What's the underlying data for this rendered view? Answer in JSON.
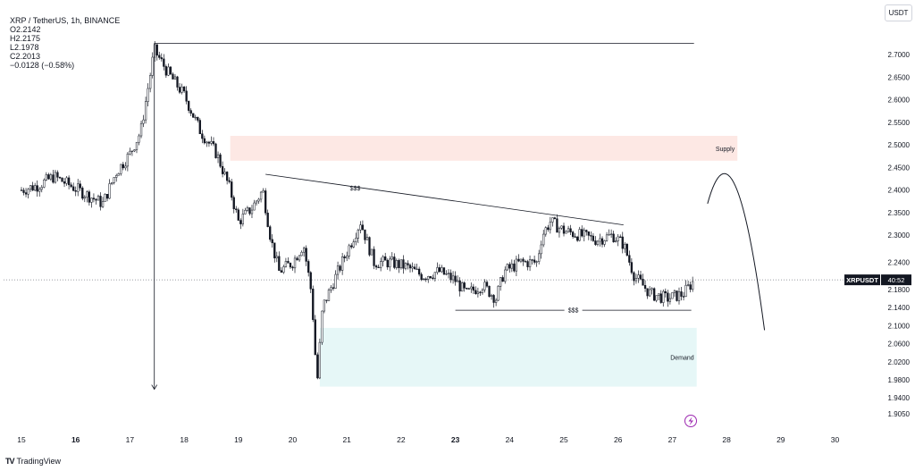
{
  "header": {
    "symbol": "XRP / TetherUS, 1h, BINANCE",
    "open": "O2.2142",
    "high": "H2.2175",
    "low": "L2.1978",
    "close": "C2.2013",
    "change": "−0.0128 (−0.58%)"
  },
  "currency_button": "USDT",
  "footer": {
    "logo": "TV",
    "brand": "TradingView"
  },
  "chart_data": {
    "type": "candlestick",
    "symbol": "XRPUSDT",
    "interval": "1h",
    "y_ticks": [
      "2.7000",
      "2.6500",
      "2.6000",
      "2.5500",
      "2.5000",
      "2.4500",
      "2.4000",
      "2.3500",
      "2.3000",
      "2.2400",
      "2.1800",
      "2.1400",
      "2.1000",
      "2.0600",
      "2.0200",
      "1.9800",
      "1.9400",
      "1.9050"
    ],
    "x_ticks": [
      {
        "label": "15",
        "bold": false
      },
      {
        "label": "16",
        "bold": true
      },
      {
        "label": "17",
        "bold": false
      },
      {
        "label": "18",
        "bold": false
      },
      {
        "label": "19",
        "bold": false
      },
      {
        "label": "20",
        "bold": false
      },
      {
        "label": "21",
        "bold": false
      },
      {
        "label": "22",
        "bold": false
      },
      {
        "label": "23",
        "bold": true
      },
      {
        "label": "24",
        "bold": false
      },
      {
        "label": "25",
        "bold": false
      },
      {
        "label": "26",
        "bold": false
      },
      {
        "label": "27",
        "bold": false
      },
      {
        "label": "28",
        "bold": false
      },
      {
        "label": "29",
        "bold": false
      },
      {
        "label": "30",
        "bold": false
      }
    ],
    "current_price_label": "XRPUSDT",
    "countdown": "40:52",
    "current_price": 2.2013,
    "price_path": [
      [
        15.0,
        2.4
      ],
      [
        15.3,
        2.41
      ],
      [
        15.6,
        2.43
      ],
      [
        15.9,
        2.41
      ],
      [
        16.2,
        2.39
      ],
      [
        16.5,
        2.37
      ],
      [
        16.75,
        2.44
      ],
      [
        17.0,
        2.48
      ],
      [
        17.2,
        2.53
      ],
      [
        17.45,
        2.71
      ],
      [
        17.7,
        2.66
      ],
      [
        18.0,
        2.61
      ],
      [
        18.3,
        2.53
      ],
      [
        18.6,
        2.48
      ],
      [
        18.85,
        2.4
      ],
      [
        19.0,
        2.33
      ],
      [
        19.25,
        2.36
      ],
      [
        19.45,
        2.4
      ],
      [
        19.6,
        2.29
      ],
      [
        19.75,
        2.22
      ],
      [
        20.0,
        2.24
      ],
      [
        20.2,
        2.28
      ],
      [
        20.35,
        2.17
      ],
      [
        20.45,
        1.97
      ],
      [
        20.55,
        2.14
      ],
      [
        20.8,
        2.21
      ],
      [
        21.1,
        2.29
      ],
      [
        21.25,
        2.33
      ],
      [
        21.5,
        2.24
      ],
      [
        21.8,
        2.24
      ],
      [
        22.1,
        2.23
      ],
      [
        22.4,
        2.21
      ],
      [
        22.7,
        2.22
      ],
      [
        23.0,
        2.2
      ],
      [
        23.2,
        2.17
      ],
      [
        23.5,
        2.19
      ],
      [
        23.75,
        2.16
      ],
      [
        23.9,
        2.22
      ],
      [
        24.2,
        2.24
      ],
      [
        24.5,
        2.24
      ],
      [
        24.6,
        2.3
      ],
      [
        24.75,
        2.33
      ],
      [
        25.0,
        2.31
      ],
      [
        25.3,
        2.3
      ],
      [
        25.6,
        2.29
      ],
      [
        25.9,
        2.3
      ],
      [
        26.1,
        2.28
      ],
      [
        26.3,
        2.21
      ],
      [
        26.6,
        2.17
      ],
      [
        26.9,
        2.16
      ],
      [
        27.2,
        2.17
      ],
      [
        27.4,
        2.2
      ]
    ],
    "levels": [
      {
        "name": "swing-high",
        "price": 2.725,
        "x_start": 17.45,
        "x_end": 27.4
      },
      {
        "name": "sell-side-liquidity",
        "label": "$$$",
        "price": 2.134,
        "x_start": 23.0,
        "x_end": 27.35
      }
    ],
    "trendlines": [
      {
        "name": "buy-side-liquidity",
        "label": "$$$",
        "x1": 19.5,
        "y1": 2.435,
        "x2": 26.1,
        "y2": 2.323
      }
    ],
    "zones": [
      {
        "name": "supply-zone",
        "label": "Supply",
        "top": 2.52,
        "bottom": 2.465,
        "x_start": 18.85,
        "x_end": 28.2,
        "color": "#fde8e4"
      },
      {
        "name": "demand-zone",
        "label": "Demand",
        "top": 2.095,
        "bottom": 1.965,
        "x_start": 20.5,
        "x_end": 27.45,
        "color": "#e6f7f7"
      }
    ],
    "projection": {
      "name": "projected-path",
      "points": [
        [
          27.65,
          2.37
        ],
        [
          28.15,
          2.44
        ],
        [
          28.7,
          2.09
        ]
      ]
    },
    "arrow": {
      "name": "drop-arrow",
      "x": 17.45,
      "from_price": 2.725,
      "to_price": 1.965
    },
    "colors": {
      "up": "#131722",
      "down": "#131722",
      "axis_text": "#131722",
      "price_label_bg": "#131722",
      "icon": "#9c27b0"
    }
  }
}
